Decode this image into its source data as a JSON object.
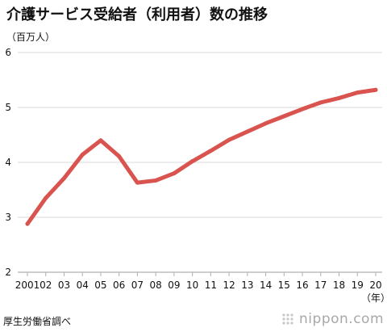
{
  "title": "介護サービス受給者（利用者）数の推移",
  "unit_label": "（百万人）",
  "source": "厚生労働省調べ",
  "brand": "nippon.com",
  "colors": {
    "line": "#d9534f",
    "grid": "#d9d9d9",
    "axis": "#b0b0b0",
    "brand_text": "#a8a8a8"
  },
  "chart_data": {
    "type": "line",
    "title": "介護サービス受給者（利用者）数の推移",
    "ylabel": "（百万人）",
    "xlabel": "（年）",
    "x": [
      "2001",
      "02",
      "03",
      "04",
      "05",
      "06",
      "07",
      "08",
      "09",
      "10",
      "11",
      "12",
      "13",
      "14",
      "15",
      "16",
      "17",
      "18",
      "19",
      "20"
    ],
    "series": [
      {
        "values": [
          2.88,
          3.35,
          3.71,
          4.14,
          4.4,
          4.11,
          3.63,
          3.67,
          3.8,
          4.02,
          4.21,
          4.41,
          4.56,
          4.71,
          4.84,
          4.97,
          5.09,
          5.17,
          5.27,
          5.32
        ]
      }
    ],
    "ylim": [
      2,
      6
    ],
    "yticks": [
      2,
      3,
      4,
      5,
      6
    ],
    "grid": true,
    "legend": "none"
  }
}
